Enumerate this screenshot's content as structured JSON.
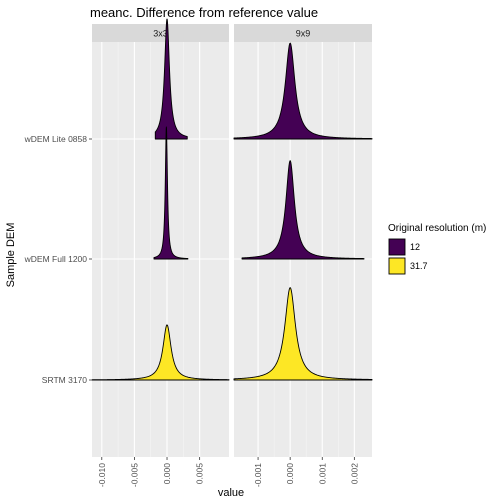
{
  "chart_data": {
    "type": "ridgeline",
    "title": "meanc. Difference from reference value",
    "xlabel": "value",
    "ylabel": "Sample DEM",
    "rows": [
      "wDEM Lite 0858",
      "wDEM Full 1200",
      "SRTM 3170"
    ],
    "legend": {
      "title": "Original resolution (m)",
      "position": "right",
      "items": [
        {
          "label": "12",
          "color": "#440154"
        },
        {
          "label": "31.7",
          "color": "#FDE725"
        }
      ]
    },
    "panels": [
      {
        "strip": "3x3",
        "xlim": [
          -0.0115,
          0.0095
        ],
        "ticks": [
          {
            "value": -0.01,
            "label": "-0.010"
          },
          {
            "value": -0.005,
            "label": "-0.005"
          },
          {
            "value": 0.0,
            "label": "0.000"
          },
          {
            "value": 0.005,
            "label": "0.005"
          }
        ],
        "series": [
          {
            "row": "wDEM Lite 0858",
            "resolution": "12",
            "color": "#440154",
            "peak_x": 0.0,
            "width": 0.00045,
            "height": 1.0,
            "range": [
              -0.0018,
              0.0031
            ]
          },
          {
            "row": "wDEM Full 1200",
            "resolution": "12",
            "color": "#440154",
            "peak_x": -0.0001,
            "width": 0.0002,
            "height": 1.1,
            "range": [
              -0.002,
              0.0032
            ]
          },
          {
            "row": "SRTM 3170",
            "resolution": "31.7",
            "color": "#FDE725",
            "peak_x": 0.0,
            "width": 0.00075,
            "height": 0.46,
            "range": [
              -0.0115,
              0.0095
            ]
          }
        ]
      },
      {
        "strip": "9x9",
        "xlim": [
          -0.00175,
          0.00255
        ],
        "ticks": [
          {
            "value": -0.001,
            "label": "-0.001"
          },
          {
            "value": 0.0,
            "label": "0.000"
          },
          {
            "value": 0.001,
            "label": "0.001"
          },
          {
            "value": 0.002,
            "label": "0.002"
          }
        ],
        "series": [
          {
            "row": "wDEM Lite 0858",
            "resolution": "12",
            "color": "#440154",
            "peak_x": 0.0,
            "width": 0.00018,
            "height": 0.8,
            "range": [
              -0.00175,
              0.00255
            ]
          },
          {
            "row": "wDEM Full 1200",
            "resolution": "12",
            "color": "#440154",
            "peak_x": 0.0,
            "width": 0.00016,
            "height": 0.82,
            "range": [
              -0.0015,
              0.0023
            ]
          },
          {
            "row": "SRTM 3170",
            "resolution": "31.7",
            "color": "#FDE725",
            "peak_x": 0.0,
            "width": 0.0002,
            "height": 0.77,
            "range": [
              -0.00175,
              0.00255
            ]
          }
        ]
      }
    ]
  }
}
